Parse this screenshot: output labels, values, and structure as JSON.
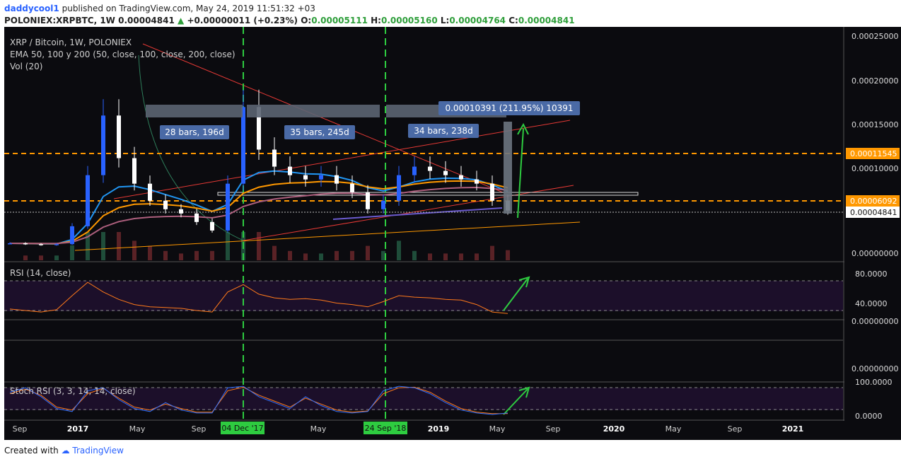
{
  "header": {
    "author": "daddycool1",
    "published": "published on TradingView.com, May 24, 2019 11:51:32 +03",
    "symbol": "POLONIEX:XRPBTC, 1W",
    "last": "0.00004841",
    "change": "+0.00000011 (+0.23%)",
    "open_label": "O:",
    "open": "0.00005111",
    "high_label": "H:",
    "high": "0.00005160",
    "low_label": "L:",
    "low": "0.00004764",
    "close_label": "C:",
    "close": "0.00004841"
  },
  "legend": {
    "title": "XRP / Bitcoin, 1W, POLONIEX",
    "ema": "EMA 50, 100 y 200 (50, close, 100, close, 200, close)",
    "vol": "Vol (20)",
    "rsi": "RSI (14, close)",
    "stoch": "Stoch RSI (3, 3, 14, 14, close)"
  },
  "annotations": {
    "box1": "28 bars, 196d",
    "box2": "35 bars, 245d",
    "box3": "34 bars, 238d",
    "measure": "0.00010391 (211.95%) 10391"
  },
  "price_axis": {
    "ticks": [
      "0.00025000",
      "0.00020000",
      "0.00015000",
      "0.00010000",
      "0.00000000"
    ],
    "badge_top": "0.00011545",
    "badge_mid": "0.00006092",
    "badge_last": "0.00004841"
  },
  "rsi_axis": {
    "ticks": [
      "80.0000",
      "40.0000",
      "0.00000000"
    ]
  },
  "empty_axis": {
    "ticks": [
      "0.00000000"
    ]
  },
  "stoch_axis": {
    "ticks": [
      "100.0000",
      "0.0000"
    ]
  },
  "time_axis": {
    "ticks": [
      "Sep",
      "2017",
      "May",
      "Sep",
      "Jan",
      "May",
      "Sep",
      "2019",
      "May",
      "Sep",
      "2020",
      "May",
      "Sep",
      "2021"
    ],
    "marker1": "04 Dec '17",
    "marker2": "24 Sep '18"
  },
  "colors": {
    "accent": "#2962ff",
    "up": "#2e9e3a",
    "down": "#d32f2f",
    "orange": "#ff9800",
    "candle_up": "#2962ff",
    "candle_down": "#ffffff",
    "ema50": "#2196f3",
    "ema100": "#ff9800",
    "ema200": "#ad5f7d"
  },
  "footer": {
    "created": "Created with",
    "brand": "TradingView"
  },
  "chart_data": {
    "type": "line",
    "title": "XRP / Bitcoin, 1W, POLONIEX",
    "price_range": [
      0,
      0.00025
    ],
    "price_series": {
      "name": "XRPBTC",
      "x": [
        "2016-08",
        "2016-10",
        "2016-12",
        "2017-02",
        "2017-03",
        "2017-04",
        "2017-05",
        "2017-06",
        "2017-07",
        "2017-08",
        "2017-09",
        "2017-10",
        "2017-11",
        "2017-12",
        "2017-12b",
        "2018-01",
        "2018-01b",
        "2018-02",
        "2018-03",
        "2018-04",
        "2018-05",
        "2018-06",
        "2018-07",
        "2018-08",
        "2018-09",
        "2018-10",
        "2018-11",
        "2018-12",
        "2019-01",
        "2019-02",
        "2019-03",
        "2019-04",
        "2019-05"
      ],
      "values": [
        1e-05,
        9e-06,
        8e-06,
        9e-06,
        3e-05,
        9e-05,
        0.00016,
        0.00011,
        8e-05,
        6e-05,
        5e-05,
        4.5e-05,
        3.5e-05,
        2.5e-05,
        8e-05,
        0.00017,
        0.00012,
        0.0001,
        9e-05,
        8.5e-05,
        9e-05,
        8e-05,
        7e-05,
        5e-05,
        6e-05,
        9e-05,
        0.0001,
        9.5e-05,
        9e-05,
        8.5e-05,
        8e-05,
        6e-05,
        4.841e-05
      ]
    },
    "horizontal_levels": [
      0.00011545,
      6.092e-05
    ],
    "rsi_range": [
      0,
      100
    ],
    "rsi_series": {
      "name": "RSI (14, close)",
      "values": [
        42,
        40,
        38,
        41,
        60,
        78,
        65,
        55,
        48,
        45,
        44,
        43,
        40,
        38,
        65,
        75,
        62,
        57,
        55,
        56,
        54,
        50,
        48,
        45,
        52,
        60,
        58,
        57,
        55,
        54,
        48,
        38,
        36
      ]
    },
    "stoch_range": [
      0,
      100
    ],
    "stoch_k": {
      "values": [
        75,
        90,
        60,
        20,
        10,
        80,
        90,
        50,
        20,
        10,
        40,
        15,
        5,
        5,
        90,
        95,
        60,
        40,
        20,
        60,
        30,
        10,
        5,
        10,
        80,
        95,
        90,
        70,
        40,
        15,
        5,
        0,
        5
      ]
    },
    "stoch_d": {
      "values": [
        70,
        85,
        65,
        25,
        15,
        70,
        88,
        55,
        25,
        15,
        35,
        20,
        8,
        8,
        80,
        92,
        65,
        45,
        25,
        55,
        35,
        15,
        8,
        12,
        70,
        90,
        92,
        75,
        45,
        20,
        8,
        3,
        3
      ]
    },
    "time_ticks": [
      "Sep",
      "2017",
      "May",
      "Sep",
      "Jan",
      "May",
      "Sep",
      "2019",
      "May",
      "Sep",
      "2020",
      "May",
      "Sep",
      "2021"
    ]
  }
}
